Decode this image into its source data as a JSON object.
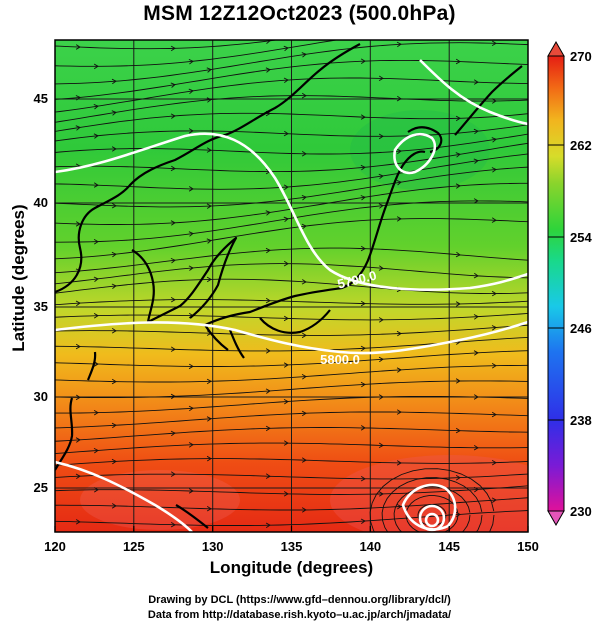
{
  "title": "MSM 12Z12Oct2023 (500.0hPa)",
  "axes": {
    "xlabel": "Longitude (degrees)",
    "ylabel": "Latitude  (degrees)",
    "x_ticks": [
      "120",
      "125",
      "130",
      "135",
      "140",
      "145",
      "150"
    ],
    "y_ticks": [
      "25",
      "30",
      "35",
      "40",
      "45"
    ]
  },
  "map": {
    "region": "Japan and surrounding seas",
    "lon_range": [
      120,
      150
    ],
    "lat_range": [
      22.4,
      47.6
    ],
    "field": "temperature (K) with streamlines and geopotential height contours",
    "contour_labels": [
      "5700.0",
      "5800.0"
    ]
  },
  "colorbar": {
    "ticks": [
      "270",
      "262",
      "254",
      "246",
      "238",
      "230"
    ],
    "min": 230,
    "max": 270,
    "colors": [
      "#e0119a",
      "#7a1bd6",
      "#2f2fe8",
      "#1e74f0",
      "#19c9e8",
      "#19d98a",
      "#2fd43a",
      "#8ad42c",
      "#d7dc2a",
      "#f2b41e",
      "#f26a15",
      "#e51e14"
    ]
  },
  "credits": {
    "line1": "Drawing by DCL (https://www.gfd–dennou.org/library/dcl/)",
    "line2": "Data from http://database.rish.kyoto–u.ac.jp/arch/jmadata/"
  }
}
